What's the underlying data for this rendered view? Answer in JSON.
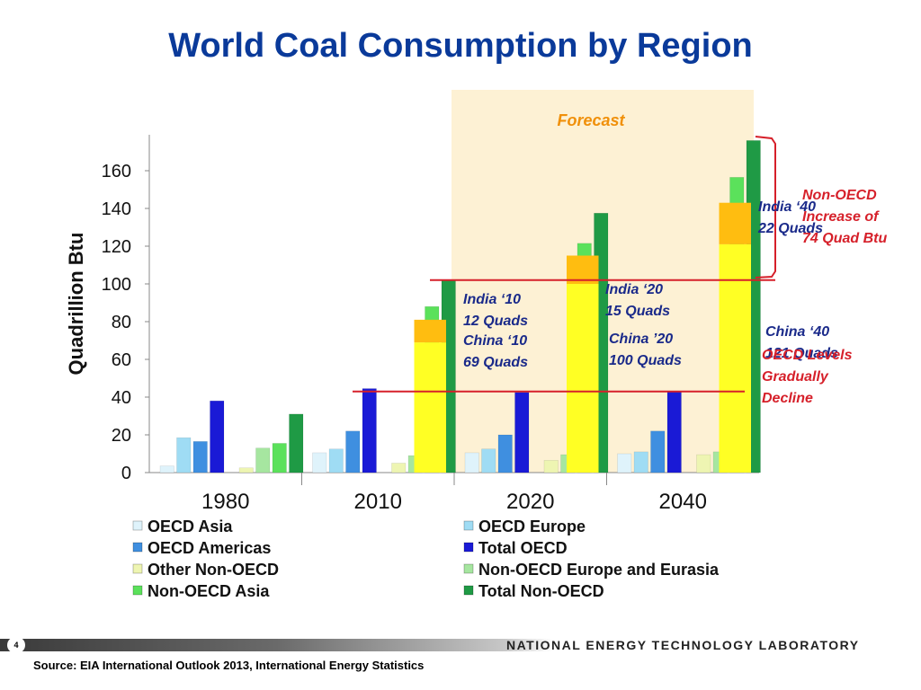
{
  "slide": {
    "title": "World Coal Consumption by Region",
    "slide_number": "4",
    "organization": "NATIONAL ENERGY TECHNOLOGY LABORATORY",
    "source": "Source: EIA International Outlook 2013, International Energy Statistics"
  },
  "chart_data": {
    "type": "bar",
    "ylabel": "Quadrillion Btu",
    "xlabel": "",
    "ylim": [
      0,
      180
    ],
    "yticks": [
      0,
      20,
      40,
      60,
      80,
      100,
      120,
      140,
      160
    ],
    "categories": [
      "1980",
      "2010",
      "2020",
      "2040"
    ],
    "series": [
      {
        "name": "OECD Asia",
        "color": "#dff3fb",
        "values": [
          3.5,
          10.5,
          10.5,
          10
        ]
      },
      {
        "name": "OECD Europe",
        "color": "#9fdcf4",
        "values": [
          18.5,
          12.5,
          12.5,
          11
        ]
      },
      {
        "name": "OECD Americas",
        "color": "#3f8fe0",
        "values": [
          16.5,
          22,
          20,
          22
        ]
      },
      {
        "name": "Total OECD",
        "color": "#1a1ad6",
        "values": [
          38,
          44.5,
          42.5,
          43
        ]
      },
      {
        "name": "Other Non-OECD",
        "color": "#eef5b2",
        "values": [
          2.5,
          5,
          6.5,
          9.5
        ]
      },
      {
        "name": "Non-OECD Europe and Eurasia",
        "color": "#a6e6a0",
        "values": [
          13,
          9,
          9.5,
          11
        ]
      },
      {
        "name": "Non-OECD Asia",
        "color": "#5be15b",
        "values": [
          15.5,
          88,
          121.5,
          156.5
        ]
      },
      {
        "name": "Total Non-OECD",
        "color": "#1f9a45",
        "values": [
          31,
          102,
          137.5,
          176
        ]
      }
    ],
    "breakdowns": [
      {
        "category": "2010",
        "china": 69,
        "india": 12,
        "total": 81
      },
      {
        "category": "2020",
        "china": 100,
        "india": 15,
        "total": 115
      },
      {
        "category": "2040",
        "china": 121,
        "india": 22,
        "total": 143
      }
    ],
    "breakdown_colors": {
      "china": "#ffff24",
      "india": "#ffbd10"
    },
    "forecast_label": "Forecast",
    "forecast_color": "#fdf1d4",
    "reference_lines": [
      {
        "value": 43,
        "color": "#d6202a"
      },
      {
        "value": 102,
        "color": "#d6202a"
      }
    ],
    "annotations": [
      {
        "line1": "India ‘10",
        "line2": "12 Quads",
        "color": "#1a2a8a"
      },
      {
        "line1": "China ‘10",
        "line2": " 69 Quads",
        "color": "#1a2a8a"
      },
      {
        "line1": "India  ‘20",
        "line2": "15 Quads",
        "color": "#1a2a8a"
      },
      {
        "line1": "China ’20",
        "line2": "100 Quads",
        "color": "#1a2a8a"
      },
      {
        "line1": "India ‘40",
        "line2": "22 Quads",
        "color": "#1a2a8a"
      },
      {
        "line1": "China ‘40",
        "line2": "121 Quads",
        "color": "#1a2a8a"
      },
      {
        "line1": "Non-OECD",
        "line2": "Increase of",
        "line3": "74 Quad Btu",
        "color": "#d6202a"
      },
      {
        "line1": "OECD Levels",
        "line2": "Gradually",
        "line3": "Decline",
        "color": "#d6202a"
      }
    ],
    "legend_placement": "bottom"
  }
}
